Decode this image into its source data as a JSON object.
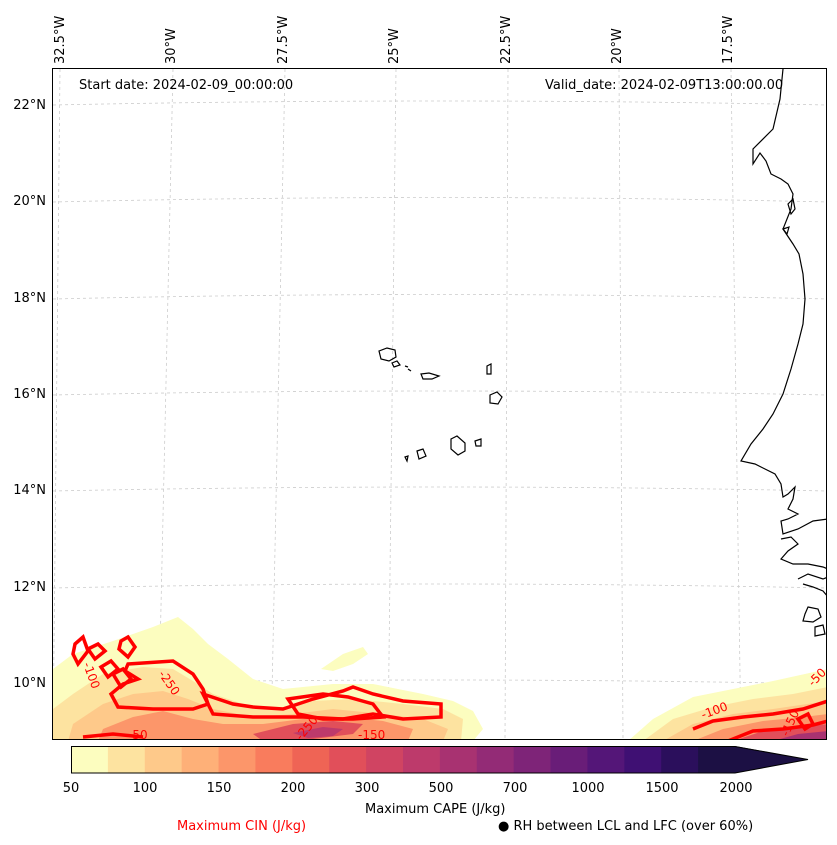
{
  "map": {
    "start_date": "Start date: 2024-02-09_00:00:00",
    "valid_date": "Valid_date: 2024-02-09T13:00:00.00",
    "lon_labels": [
      "32.5°W",
      "30°W",
      "27.5°W",
      "25°W",
      "22.5°W",
      "20°W",
      "17.5°W"
    ],
    "lat_labels": [
      "22°N",
      "20°N",
      "18°N",
      "16°N",
      "14°N",
      "12°N",
      "10°N"
    ],
    "cin_contour_labels": [
      "-250",
      "-250",
      "-150",
      "-50",
      "-100",
      "-100",
      "-150",
      "-50"
    ],
    "colors": {
      "cin_line": "#ff0000",
      "coast": "#000000",
      "grid": "#cccccc"
    }
  },
  "colorbar": {
    "tick_labels": [
      "50",
      "100",
      "150",
      "200",
      "300",
      "500",
      "700",
      "1000",
      "1500",
      "2000"
    ],
    "colors": [
      "#fcfdbf",
      "#fde3a0",
      "#fec98a",
      "#feb078",
      "#fc966a",
      "#f97c5d",
      "#ef6455",
      "#e14f5a",
      "#d04462",
      "#bd3a6b",
      "#a83271",
      "#932b76",
      "#7e2478",
      "#691d78",
      "#541678",
      "#3f1073",
      "#2b0f5c",
      "#1c1044"
    ],
    "title": "Maximum CAPE (J/kg)"
  },
  "legend": {
    "cin_label": "Maximum CIN (J/kg)",
    "cin_color": "#ff0000",
    "rh_label": "● RH between LCL and LFC (over 60%)"
  }
}
